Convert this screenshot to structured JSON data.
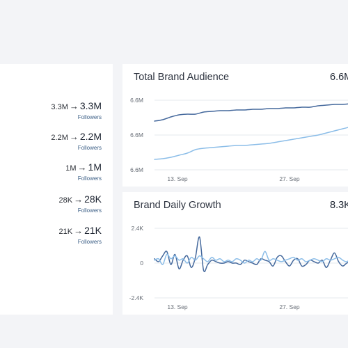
{
  "left_panel": {
    "metrics": [
      {
        "from": "3.3M",
        "to": "3.3M",
        "label": "Followers"
      },
      {
        "from": "2.2M",
        "to": "2.2M",
        "label": "Followers"
      },
      {
        "from": "1M",
        "to": "1M",
        "label": "Followers"
      },
      {
        "from": "28K",
        "to": "28K",
        "label": "Followers"
      },
      {
        "from": "21K",
        "to": "21K",
        "label": "Followers"
      }
    ],
    "arrow": "→"
  },
  "audience_card": {
    "title": "Total Brand Audience",
    "total": "6.6M"
  },
  "growth_card": {
    "title": "Brand Daily Growth",
    "total": "8.3K"
  },
  "colors": {
    "series_dark": "#44689c",
    "series_light": "#8bbde8",
    "gridline": "#e6e8ec"
  },
  "chart_data": [
    {
      "type": "line",
      "title": "Total Brand Audience",
      "x_ticks": [
        "13. Sep",
        "27. Sep"
      ],
      "y_ticks": [
        "6.6M",
        "6.6M",
        "6.6M"
      ],
      "x": [
        1,
        2,
        3,
        4,
        5,
        6,
        7,
        8,
        9,
        10,
        11,
        12,
        13,
        14,
        15,
        16,
        17,
        18,
        19,
        20,
        21,
        22,
        23,
        24,
        25,
        26
      ],
      "series": [
        {
          "values": [
            0.7,
            0.72,
            0.76,
            0.79,
            0.8,
            0.8,
            0.83,
            0.84,
            0.85,
            0.85,
            0.86,
            0.86,
            0.87,
            0.87,
            0.88,
            0.88,
            0.89,
            0.89,
            0.9,
            0.9,
            0.92,
            0.93,
            0.94,
            0.94,
            0.95,
            0.96
          ]
        },
        {
          "values": [
            0.15,
            0.16,
            0.18,
            0.21,
            0.24,
            0.29,
            0.31,
            0.32,
            0.33,
            0.34,
            0.35,
            0.35,
            0.36,
            0.37,
            0.38,
            0.4,
            0.42,
            0.44,
            0.46,
            0.48,
            0.5,
            0.53,
            0.56,
            0.59,
            0.62,
            0.66
          ]
        }
      ],
      "grid": true
    },
    {
      "type": "line",
      "title": "Brand Daily Growth",
      "x_ticks": [
        "13. Sep",
        "27. Sep"
      ],
      "y_ticks": [
        "2.4K",
        "0",
        "-2.4K"
      ],
      "ylim": [
        -2.4,
        2.4
      ],
      "x": [
        1,
        2,
        3,
        4,
        5,
        6,
        7,
        8,
        9,
        10,
        11,
        12,
        13,
        14,
        15,
        16,
        17,
        18,
        19,
        20,
        21,
        22,
        23,
        24,
        25,
        26,
        27,
        28,
        29,
        30,
        31,
        32,
        33,
        34,
        35,
        36,
        37,
        38,
        39,
        40,
        41,
        42,
        43,
        44,
        45,
        46,
        47,
        48,
        49,
        50
      ],
      "series": [
        {
          "values": [
            0.3,
            0.1,
            0.5,
            0.8,
            -0.1,
            0.6,
            -0.4,
            0.2,
            0.5,
            -0.3,
            0.4,
            1.8,
            -0.5,
            -0.1,
            0.2,
            0.1,
            0.0,
            0.0,
            0.1,
            0.0,
            0.0,
            -0.1,
            0.2,
            0.1,
            0.0,
            -0.1,
            0.3,
            0.2,
            0.1,
            -0.2,
            0.4,
            0.5,
            0.1,
            -0.2,
            0.2,
            0.3,
            -0.2,
            -0.1,
            0.2,
            0.1,
            0.0,
            0.2,
            -0.3,
            0.2,
            0.7,
            0.1,
            -0.2,
            0.0,
            0.1,
            0.2
          ]
        },
        {
          "values": [
            0.2,
            0.3,
            -0.1,
            0.6,
            0.3,
            0.5,
            0.2,
            0.3,
            0.0,
            0.4,
            0.2,
            0.5,
            0.3,
            0.1,
            0.4,
            0.2,
            0.3,
            0.1,
            0.2,
            0.1,
            0.3,
            0.2,
            0.0,
            0.2,
            0.1,
            0.3,
            0.2,
            0.8,
            0.2,
            0.3,
            0.2,
            0.1,
            0.2,
            0.3,
            0.4,
            0.2,
            0.3,
            0.1,
            0.2,
            0.3,
            0.2,
            0.1,
            0.3,
            0.2,
            0.3,
            0.4,
            0.2,
            0.1,
            0.3,
            0.5
          ]
        }
      ],
      "grid": true
    }
  ]
}
